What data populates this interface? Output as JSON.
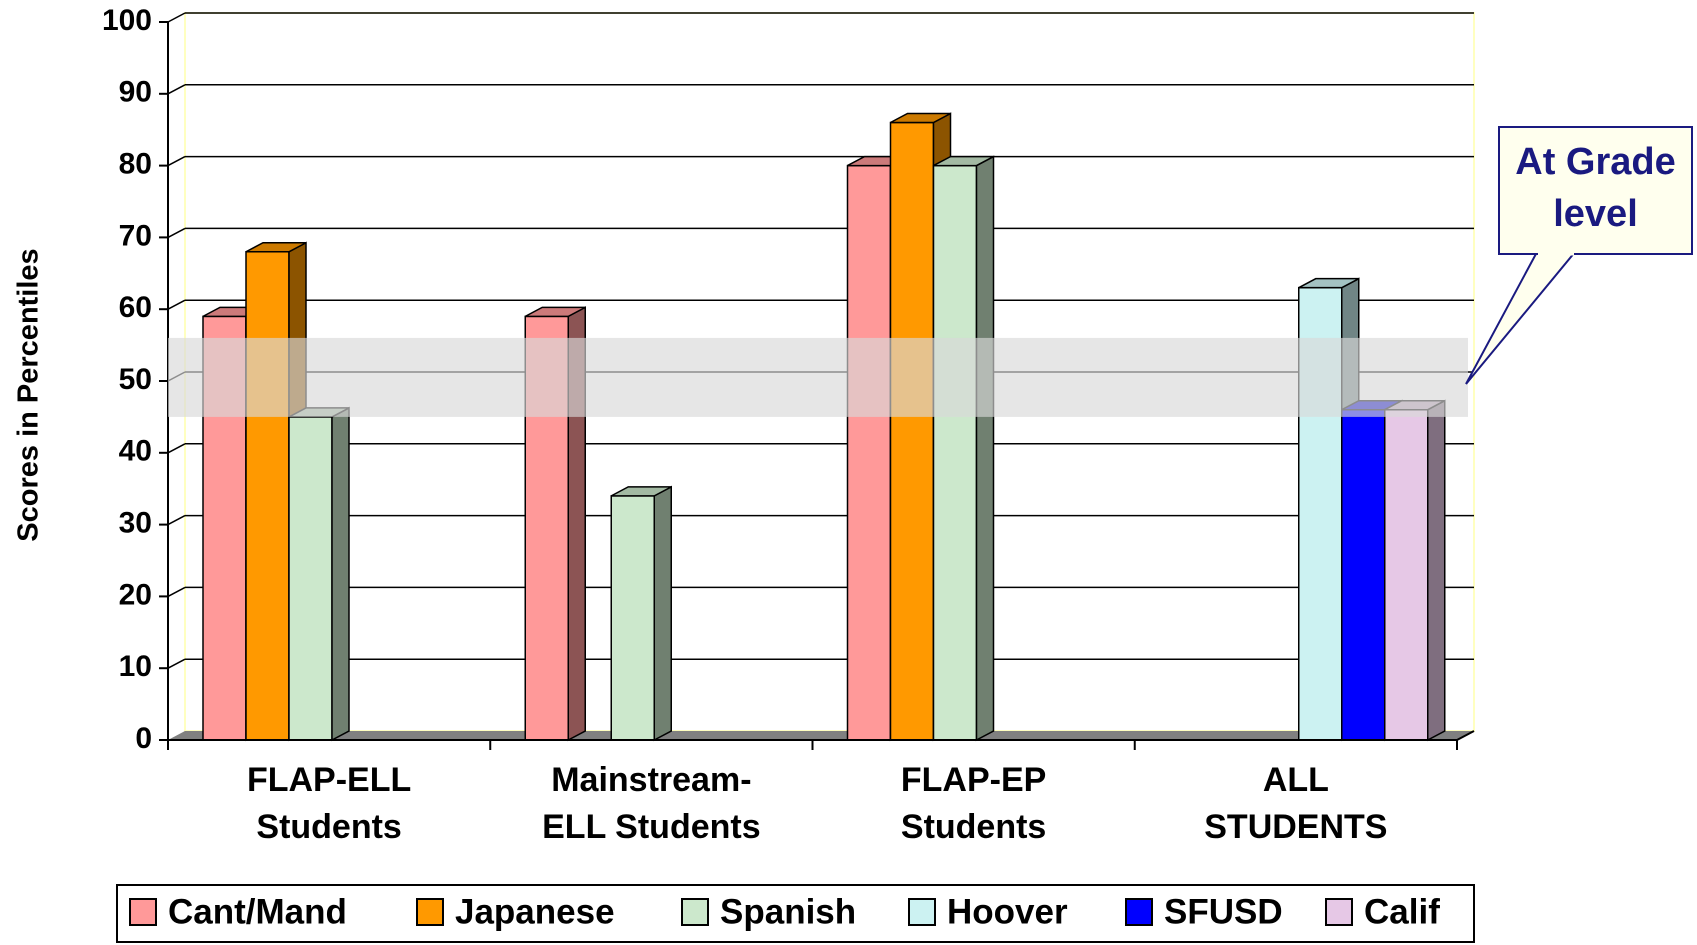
{
  "chart_data": {
    "type": "bar3d",
    "y_axis_label": "Scores in Percentiles",
    "categories": [
      [
        "FLAP-ELL",
        "Students"
      ],
      [
        "Mainstream-",
        "ELL Students"
      ],
      [
        "FLAP-EP",
        "Students"
      ],
      [
        "ALL",
        "STUDENTS"
      ]
    ],
    "series": [
      {
        "name": "Cant/Mand",
        "color": "#ff9999",
        "values": [
          59,
          59,
          80,
          null
        ]
      },
      {
        "name": "Japanese",
        "color": "#ff9900",
        "values": [
          68,
          null,
          86,
          null
        ]
      },
      {
        "name": "Spanish",
        "color": "#cce8cc",
        "values": [
          45,
          34,
          80,
          null
        ]
      },
      {
        "name": "Hoover",
        "color": "#ccf2f2",
        "values": [
          null,
          null,
          null,
          63
        ]
      },
      {
        "name": "SFUSD",
        "color": "#0000ff",
        "values": [
          null,
          null,
          null,
          46
        ]
      },
      {
        "name": "Calif",
        "color": "#e6c8e6",
        "values": [
          null,
          null,
          null,
          46
        ]
      }
    ],
    "ylim": [
      0,
      100
    ],
    "yticks": [
      0,
      10,
      20,
      30,
      40,
      50,
      60,
      70,
      80,
      90,
      100
    ],
    "grid": true,
    "band": [
      45,
      56
    ],
    "annotation": "At Grade level",
    "legend": "bottom"
  }
}
